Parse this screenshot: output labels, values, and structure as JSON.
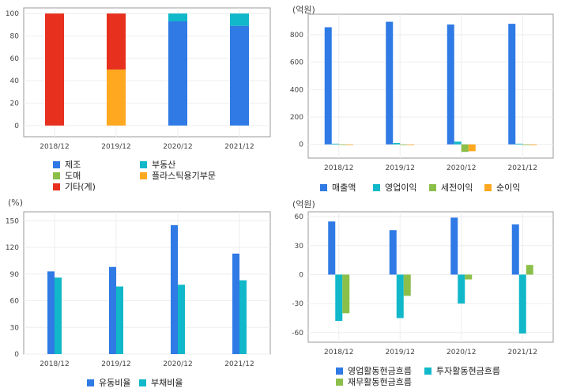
{
  "colors": {
    "blue": "#2f7ae5",
    "teal": "#11b8c9",
    "green": "#8cbf4a",
    "red": "#e8301f",
    "orange": "#ffa820",
    "grid": "#eeeeee",
    "axis": "#999999"
  },
  "chart_data": [
    {
      "id": "composition",
      "type": "bar",
      "stacked": true,
      "unit": "",
      "categories": [
        "2018/12",
        "2019/12",
        "2020/12",
        "2021/12"
      ],
      "ylim": [
        -10,
        105
      ],
      "yticks": [
        0,
        20,
        40,
        60,
        80,
        100
      ],
      "series": [
        {
          "name": "제조",
          "color": "#2f7ae5",
          "values": [
            0,
            0,
            93,
            89
          ]
        },
        {
          "name": "부동산",
          "color": "#11b8c9",
          "values": [
            0,
            0,
            7,
            11
          ]
        },
        {
          "name": "도매",
          "color": "#8cbf4a",
          "values": [
            0,
            0,
            0,
            0
          ]
        },
        {
          "name": "플라스틱용기부문",
          "color": "#ffa820",
          "values": [
            0,
            50,
            0,
            0
          ]
        },
        {
          "name": "기타(계)",
          "color": "#e8301f",
          "values": [
            100,
            50,
            0,
            0
          ]
        }
      ],
      "legend_order": [
        "제조",
        "부동산",
        "도매",
        "플라스틱용기부문",
        "기타(계)"
      ]
    },
    {
      "id": "income",
      "type": "bar",
      "unit": "(억원)",
      "categories": [
        "2018/12",
        "2019/12",
        "2020/12",
        "2021/12"
      ],
      "ylim": [
        -100,
        950
      ],
      "yticks": [
        0,
        200,
        400,
        600,
        800
      ],
      "series": [
        {
          "name": "매출액",
          "color": "#2f7ae5",
          "values": [
            855,
            895,
            875,
            880
          ]
        },
        {
          "name": "영업이익",
          "color": "#11b8c9",
          "values": [
            5,
            10,
            20,
            5
          ]
        },
        {
          "name": "세전이익",
          "color": "#8cbf4a",
          "values": [
            -2,
            0,
            -55,
            -5
          ]
        },
        {
          "name": "순이익",
          "color": "#ffa820",
          "values": [
            -2,
            0,
            -50,
            -5
          ]
        }
      ]
    },
    {
      "id": "ratios",
      "type": "bar",
      "unit": "(%)",
      "categories": [
        "2018/12",
        "2019/12",
        "2020/12",
        "2021/12"
      ],
      "ylim": [
        0,
        160
      ],
      "yticks": [
        0,
        30,
        60,
        90,
        120,
        150
      ],
      "series": [
        {
          "name": "유동비율",
          "color": "#2f7ae5",
          "values": [
            93,
            98,
            145,
            113
          ]
        },
        {
          "name": "부채비율",
          "color": "#11b8c9",
          "values": [
            86,
            76,
            78,
            83
          ]
        }
      ]
    },
    {
      "id": "cashflow",
      "type": "bar",
      "unit": "(억원)",
      "categories": [
        "2018/12",
        "2019/12",
        "2020/12",
        "2021/12"
      ],
      "ylim": [
        -70,
        65
      ],
      "yticks": [
        -60,
        -30,
        0,
        30,
        60
      ],
      "series": [
        {
          "name": "영업활동현금흐름",
          "color": "#2f7ae5",
          "values": [
            55,
            46,
            59,
            52
          ]
        },
        {
          "name": "투자활동현금흐름",
          "color": "#11b8c9",
          "values": [
            -48,
            -45,
            -30,
            -61
          ]
        },
        {
          "name": "재무활동현금흐름",
          "color": "#8cbf4a",
          "values": [
            -40,
            -22,
            -5,
            10
          ]
        }
      ]
    }
  ]
}
